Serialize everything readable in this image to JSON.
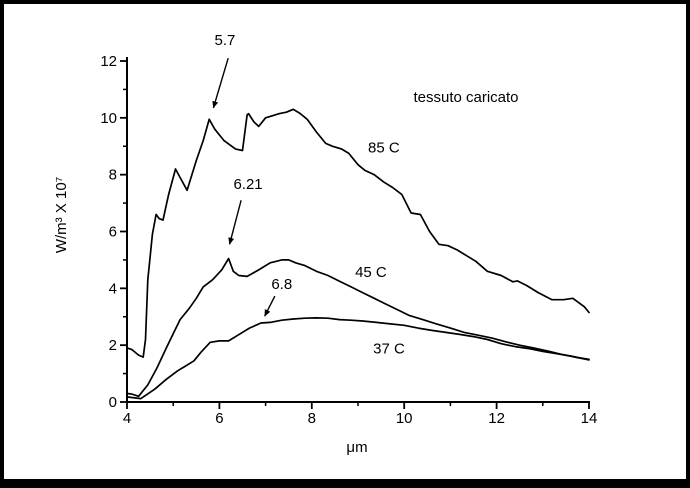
{
  "figure": {
    "title": "tessuto caricato",
    "background": "#ffffff",
    "frame_color": "#000000",
    "line_color": "#000000"
  },
  "chart_data": {
    "type": "line",
    "title": "tessuto caricato",
    "xlabel": "μm",
    "ylabel": "W/m³ X 10⁷",
    "xlim": [
      4,
      14
    ],
    "ylim": [
      0,
      12
    ],
    "grid": false,
    "legend_position": "labels-on-curves",
    "x_major_ticks": [
      4,
      6,
      8,
      10,
      12,
      14
    ],
    "x_minor_ticks": [
      5,
      7,
      9,
      11,
      13
    ],
    "y_major_ticks": [
      0,
      2,
      4,
      6,
      8,
      10,
      12
    ],
    "y_minor_ticks": [
      1,
      3,
      5,
      7,
      9,
      11
    ],
    "series": [
      {
        "name": "85 C",
        "label_pos": {
          "x": 9.56,
          "y": 8.95
        },
        "x": [
          4.0,
          4.1,
          4.25,
          4.35,
          4.4,
          4.45,
          4.55,
          4.63,
          4.7,
          4.78,
          4.9,
          5.05,
          5.15,
          5.3,
          5.5,
          5.65,
          5.78,
          5.9,
          6.1,
          6.35,
          6.5,
          6.6,
          6.63,
          6.75,
          6.85,
          7.0,
          7.1,
          7.3,
          7.45,
          7.6,
          7.75,
          7.9,
          8.1,
          8.3,
          8.45,
          8.65,
          8.8,
          9.0,
          9.15,
          9.35,
          9.55,
          9.75,
          9.95,
          10.15,
          10.35,
          10.55,
          10.75,
          10.95,
          11.15,
          11.35,
          11.55,
          11.8,
          12.1,
          12.35,
          12.45,
          12.65,
          12.9,
          13.2,
          13.45,
          13.65,
          13.9,
          14.0
        ],
        "y": [
          1.9,
          1.85,
          1.65,
          1.58,
          2.2,
          4.3,
          5.9,
          6.6,
          6.45,
          6.4,
          7.3,
          8.2,
          7.9,
          7.45,
          8.5,
          9.2,
          9.95,
          9.6,
          9.2,
          8.9,
          8.85,
          10.1,
          10.15,
          9.85,
          9.7,
          10.0,
          10.05,
          10.15,
          10.2,
          10.3,
          10.15,
          9.95,
          9.5,
          9.1,
          9.0,
          8.9,
          8.75,
          8.35,
          8.15,
          8.0,
          7.75,
          7.55,
          7.3,
          6.65,
          6.6,
          6.0,
          5.55,
          5.5,
          5.35,
          5.15,
          4.95,
          4.6,
          4.45,
          4.23,
          4.26,
          4.1,
          3.85,
          3.6,
          3.6,
          3.65,
          3.35,
          3.15
        ]
      },
      {
        "name": "45 C",
        "label_pos": {
          "x": 9.28,
          "y": 4.58
        },
        "x": [
          4.0,
          4.1,
          4.25,
          4.45,
          4.65,
          4.85,
          5.0,
          5.15,
          5.35,
          5.5,
          5.65,
          5.85,
          6.05,
          6.2,
          6.3,
          6.42,
          6.6,
          6.85,
          7.1,
          7.35,
          7.5,
          7.65,
          7.85,
          8.1,
          8.35,
          8.6,
          8.85,
          9.1,
          9.35,
          9.6,
          9.85,
          10.1,
          10.4,
          10.7,
          11.0,
          11.3,
          11.6,
          11.9,
          12.2,
          12.5,
          12.8,
          13.1,
          13.4,
          13.7,
          14.0
        ],
        "y": [
          0.3,
          0.28,
          0.2,
          0.6,
          1.2,
          1.9,
          2.4,
          2.9,
          3.3,
          3.65,
          4.05,
          4.3,
          4.65,
          5.05,
          4.6,
          4.45,
          4.42,
          4.65,
          4.9,
          5.0,
          5.0,
          4.9,
          4.8,
          4.6,
          4.45,
          4.25,
          4.05,
          3.85,
          3.65,
          3.45,
          3.25,
          3.05,
          2.9,
          2.75,
          2.6,
          2.45,
          2.35,
          2.25,
          2.12,
          2.0,
          1.9,
          1.8,
          1.68,
          1.58,
          1.5
        ]
      },
      {
        "name": "37 C",
        "label_pos": {
          "x": 9.67,
          "y": 1.88
        },
        "x": [
          4.0,
          4.1,
          4.3,
          4.6,
          4.85,
          5.1,
          5.25,
          5.45,
          5.6,
          5.8,
          6.0,
          6.2,
          6.4,
          6.65,
          6.9,
          7.1,
          7.35,
          7.6,
          7.85,
          8.1,
          8.35,
          8.6,
          8.85,
          9.1,
          9.4,
          9.7,
          10.0,
          10.3,
          10.6,
          10.9,
          11.2,
          11.5,
          11.8,
          12.1,
          12.4,
          12.7,
          13.0,
          13.3,
          13.6,
          13.8,
          14.0
        ],
        "y": [
          0.18,
          0.16,
          0.12,
          0.45,
          0.8,
          1.1,
          1.25,
          1.45,
          1.75,
          2.1,
          2.15,
          2.15,
          2.35,
          2.6,
          2.78,
          2.8,
          2.88,
          2.92,
          2.95,
          2.96,
          2.95,
          2.9,
          2.88,
          2.85,
          2.8,
          2.75,
          2.7,
          2.6,
          2.52,
          2.45,
          2.38,
          2.3,
          2.2,
          2.05,
          1.95,
          1.88,
          1.78,
          1.7,
          1.62,
          1.55,
          1.48
        ]
      }
    ],
    "annotations": [
      {
        "label": "5.7",
        "label_pos": {
          "x": 6.12,
          "y": 12.74
        },
        "arrow_from": {
          "x": 6.19,
          "y": 12.1
        },
        "arrow_to": {
          "x": 5.87,
          "y": 10.35
        }
      },
      {
        "label": "6.21",
        "label_pos": {
          "x": 6.62,
          "y": 7.67
        },
        "arrow_from": {
          "x": 6.47,
          "y": 7.1
        },
        "arrow_to": {
          "x": 6.22,
          "y": 5.55
        }
      },
      {
        "label": "6.8",
        "label_pos": {
          "x": 7.35,
          "y": 4.15
        },
        "arrow_from": {
          "x": 7.2,
          "y": 3.73
        },
        "arrow_to": {
          "x": 6.98,
          "y": 3.02
        }
      }
    ]
  }
}
